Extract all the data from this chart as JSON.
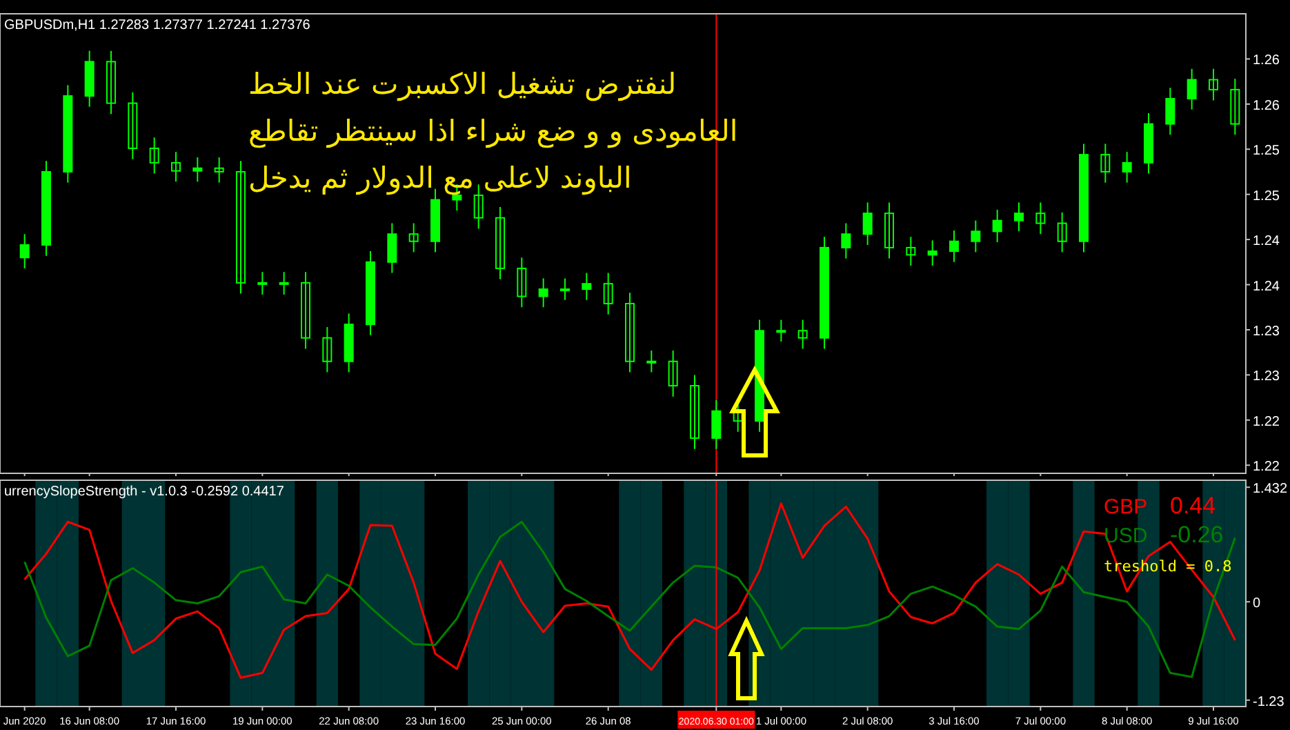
{
  "chart_data": [
    {
      "type": "candlestick",
      "title": "GBPUSDm,H1  1.27283 1.27377 1.27241 1.27376",
      "color": "#00ff00",
      "categories": [
        "Jun 2020",
        null,
        null,
        "16 Jun 08:00",
        null,
        null,
        null,
        "17 Jun 16:00",
        null,
        null,
        null,
        "19 Jun 00:00",
        null,
        null,
        null,
        "22 Jun 08:00",
        null,
        null,
        null,
        "23 Jun 16:00",
        null,
        null,
        null,
        "25 Jun 00:00",
        null,
        null,
        null,
        "26 Jun 08",
        null,
        null,
        null,
        null,
        "2020.06.30 01:00",
        null,
        null,
        "1 Jul 00:00",
        null,
        null,
        null,
        "2 Jul 08:00",
        null,
        null,
        null,
        "3 Jul 16:00",
        null,
        null,
        null,
        "7 Jul 00:00",
        null,
        null,
        null,
        "8 Jul 08:00",
        null,
        null,
        null,
        "9 Jul 16:00",
        null
      ],
      "ohlc": [
        [
          1.243,
          1.2456,
          1.2418,
          1.2444
        ],
        [
          1.2444,
          1.2537,
          1.2432,
          1.2525
        ],
        [
          1.2525,
          1.2621,
          1.2513,
          1.2609
        ],
        [
          1.2609,
          1.2659,
          1.2597,
          1.2647
        ],
        [
          1.2647,
          1.2659,
          1.2589,
          1.2601
        ],
        [
          1.2601,
          1.2613,
          1.2539,
          1.2551
        ],
        [
          1.2551,
          1.2563,
          1.2523,
          1.2535
        ],
        [
          1.2535,
          1.2547,
          1.2514,
          1.2526
        ],
        [
          1.2526,
          1.2541,
          1.2514,
          1.2529
        ],
        [
          1.2529,
          1.2541,
          1.2513,
          1.2525
        ],
        [
          1.2525,
          1.2537,
          1.239,
          1.2402
        ],
        [
          1.2402,
          1.2414,
          1.2389,
          1.2401
        ],
        [
          1.2401,
          1.2414,
          1.2389,
          1.2402
        ],
        [
          1.2402,
          1.2414,
          1.2329,
          1.2341
        ],
        [
          1.2341,
          1.2353,
          1.2303,
          1.2315
        ],
        [
          1.2315,
          1.2368,
          1.2303,
          1.2356
        ],
        [
          1.2356,
          1.2437,
          1.2344,
          1.2425
        ],
        [
          1.2425,
          1.2468,
          1.2413,
          1.2456
        ],
        [
          1.2456,
          1.2468,
          1.2436,
          1.2448
        ],
        [
          1.2448,
          1.2506,
          1.2436,
          1.2494
        ],
        [
          1.2494,
          1.2511,
          1.2482,
          1.2499
        ],
        [
          1.2499,
          1.2511,
          1.2462,
          1.2474
        ],
        [
          1.2474,
          1.2486,
          1.2406,
          1.2418
        ],
        [
          1.2418,
          1.243,
          1.2375,
          1.2387
        ],
        [
          1.2387,
          1.2407,
          1.2375,
          1.2395
        ],
        [
          1.2395,
          1.2407,
          1.2383,
          1.2395
        ],
        [
          1.2395,
          1.2413,
          1.2383,
          1.2401
        ],
        [
          1.2401,
          1.2413,
          1.2367,
          1.2379
        ],
        [
          1.2379,
          1.2391,
          1.2303,
          1.2315
        ],
        [
          1.2315,
          1.2327,
          1.2303,
          1.2315
        ],
        [
          1.2315,
          1.2327,
          1.2276,
          1.2288
        ],
        [
          1.2288,
          1.23,
          1.2218,
          1.223
        ],
        [
          1.223,
          1.2272,
          1.2218,
          1.226
        ],
        [
          1.226,
          1.2272,
          1.2237,
          1.2249
        ],
        [
          1.2249,
          1.2361,
          1.2237,
          1.2349
        ],
        [
          1.2349,
          1.2361,
          1.2337,
          1.2349
        ],
        [
          1.2349,
          1.2361,
          1.2329,
          1.2341
        ],
        [
          1.2341,
          1.2453,
          1.2329,
          1.2441
        ],
        [
          1.2441,
          1.2468,
          1.2429,
          1.2456
        ],
        [
          1.2456,
          1.2491,
          1.2444,
          1.2479
        ],
        [
          1.2479,
          1.2491,
          1.2429,
          1.2441
        ],
        [
          1.2441,
          1.2453,
          1.2421,
          1.2433
        ],
        [
          1.2433,
          1.2449,
          1.2421,
          1.2437
        ],
        [
          1.2437,
          1.246,
          1.2425,
          1.2448
        ],
        [
          1.2448,
          1.2471,
          1.2436,
          1.2459
        ],
        [
          1.2459,
          1.2483,
          1.2447,
          1.2471
        ],
        [
          1.2471,
          1.2491,
          1.2459,
          1.2479
        ],
        [
          1.2479,
          1.2491,
          1.2456,
          1.2468
        ],
        [
          1.2468,
          1.248,
          1.2436,
          1.2448
        ],
        [
          1.2448,
          1.2556,
          1.2436,
          1.2544
        ],
        [
          1.2544,
          1.2556,
          1.2513,
          1.2525
        ],
        [
          1.2525,
          1.2547,
          1.2513,
          1.2535
        ],
        [
          1.2535,
          1.259,
          1.2523,
          1.2578
        ],
        [
          1.2578,
          1.2618,
          1.2566,
          1.2606
        ],
        [
          1.2606,
          1.2639,
          1.2594,
          1.2627
        ],
        [
          1.2627,
          1.2639,
          1.2604,
          1.2616
        ],
        [
          1.2616,
          1.2628,
          1.2566,
          1.2578
        ]
      ],
      "ylim": [
        1.2191,
        1.27
      ],
      "yticks": [
        {
          "value": 1.265,
          "label": "1.26"
        },
        {
          "value": 1.26,
          "label": "1.26"
        },
        {
          "value": 1.255,
          "label": "1.25"
        },
        {
          "value": 1.25,
          "label": "1.25"
        },
        {
          "value": 1.245,
          "label": "1.24"
        },
        {
          "value": 1.24,
          "label": "1.24"
        },
        {
          "value": 1.235,
          "label": "1.23"
        },
        {
          "value": 1.23,
          "label": "1.23"
        },
        {
          "value": 1.225,
          "label": "1.22"
        },
        {
          "value": 1.22,
          "label": "1.22"
        }
      ],
      "tick_labels": "y",
      "ref_lines": [
        {
          "axis": "x",
          "value": "2020.06.30 01:00",
          "color": "#ff0000"
        }
      ],
      "annotations": [
        "لنفترض تشغيل الاكسبرت عند الخط",
        "العامودى و و ضع شراء اذا سينتظر تقاطع",
        "الباوند لاعلى مع الدولار ثم يدخل"
      ]
    },
    {
      "type": "line",
      "title": "urrencySlopeStrength - v1.0.3 -0.2592 0.4417",
      "legend": "top right",
      "categories": [
        "Jun 2020",
        null,
        null,
        "16 Jun 08:00",
        null,
        null,
        null,
        "17 Jun 16:00",
        null,
        null,
        null,
        "19 Jun 00:00",
        null,
        null,
        null,
        "22 Jun 08:00",
        null,
        null,
        null,
        "23 Jun 16:00",
        null,
        null,
        null,
        "25 Jun 00:00",
        null,
        null,
        null,
        "26 Jun 08",
        null,
        null,
        null,
        null,
        "2020.06.30 01:00",
        null,
        null,
        "1 Jul 00:00",
        null,
        null,
        null,
        "2 Jul 08:00",
        null,
        null,
        null,
        "3 Jul 16:00",
        null,
        null,
        null,
        "7 Jul 00:00",
        null,
        null,
        null,
        "8 Jul 08:00",
        null,
        null,
        null,
        "9 Jul 16:00",
        null
      ],
      "series": [
        {
          "type": "bar",
          "color": "#003333",
          "base": [
            null,
            -1.31,
            -1.31,
            null,
            null,
            -1.31,
            -1.31,
            null,
            null,
            null,
            -1.31,
            -1.31,
            -1.31,
            null,
            -1.31,
            null,
            -1.31,
            -1.31,
            -1.31,
            null,
            null,
            -1.31,
            -1.31,
            -1.31,
            -1.31,
            null,
            null,
            null,
            -1.31,
            -1.31,
            null,
            -1.31,
            -1.31,
            null,
            -1.31,
            -1.31,
            -1.31,
            -1.31,
            -1.31,
            -1.31,
            null,
            null,
            null,
            null,
            null,
            -1.31,
            -1.31,
            null,
            null,
            -1.31,
            null,
            null,
            -1.31,
            null,
            null,
            -1.31,
            -1.31
          ],
          "values": [
            null,
            2.83,
            2.83,
            null,
            null,
            2.83,
            2.83,
            null,
            null,
            null,
            2.83,
            2.83,
            2.83,
            null,
            2.83,
            null,
            2.83,
            2.83,
            2.83,
            null,
            null,
            2.83,
            2.83,
            2.83,
            2.83,
            null,
            null,
            null,
            2.83,
            2.83,
            null,
            2.83,
            2.83,
            null,
            2.83,
            2.83,
            2.83,
            2.83,
            2.83,
            2.83,
            null,
            null,
            null,
            null,
            null,
            2.83,
            2.83,
            null,
            null,
            2.83,
            null,
            null,
            2.83,
            null,
            null,
            2.83,
            2.83
          ]
        },
        {
          "name": "GBP",
          "color": "#ff0000",
          "values": [
            0.28,
            0.6,
            1.0,
            0.9,
            0.01,
            -0.64,
            -0.48,
            -0.21,
            -0.12,
            -0.33,
            -0.95,
            -0.89,
            -0.35,
            -0.18,
            -0.14,
            0.16,
            0.96,
            0.95,
            0.24,
            -0.65,
            -0.84,
            -0.12,
            0.51,
            0.0,
            -0.38,
            -0.05,
            -0.02,
            -0.06,
            -0.59,
            -0.85,
            -0.48,
            -0.22,
            -0.34,
            -0.13,
            0.39,
            1.23,
            0.55,
            0.95,
            1.19,
            0.79,
            0.13,
            -0.19,
            -0.27,
            -0.14,
            0.24,
            0.47,
            0.34,
            0.1,
            0.24,
            0.88,
            0.85,
            0.13,
            0.57,
            0.75,
            0.4,
            0.06,
            -0.48
          ]
        },
        {
          "name": "USD",
          "color": "#008000",
          "values": [
            0.5,
            -0.2,
            -0.68,
            -0.55,
            0.27,
            0.42,
            0.24,
            0.02,
            -0.02,
            0.07,
            0.37,
            0.44,
            0.03,
            -0.02,
            0.34,
            0.2,
            -0.07,
            -0.31,
            -0.53,
            -0.54,
            -0.21,
            0.34,
            0.81,
            1.0,
            0.62,
            0.16,
            0.01,
            -0.18,
            -0.36,
            -0.06,
            0.24,
            0.45,
            0.43,
            0.3,
            -0.07,
            -0.59,
            -0.33,
            -0.33,
            -0.33,
            -0.29,
            -0.18,
            0.1,
            0.19,
            0.08,
            -0.06,
            -0.31,
            -0.34,
            -0.11,
            0.44,
            0.12,
            0.06,
            0.0,
            -0.31,
            -0.89,
            -0.94,
            0.03,
            0.8
          ]
        }
      ],
      "ylim": [
        -1.31,
        1.52
      ],
      "yticks": [
        1.432,
        0,
        {
          "value": -1.23,
          "label": "-1.23"
        }
      ],
      "ref_lines": [
        {
          "axis": "x",
          "value": "2020.06.30 01:00",
          "color": "#ff0000"
        }
      ],
      "annotations": [
        "0.44",
        "-0.26",
        "treshold = 0.8"
      ]
    }
  ]
}
